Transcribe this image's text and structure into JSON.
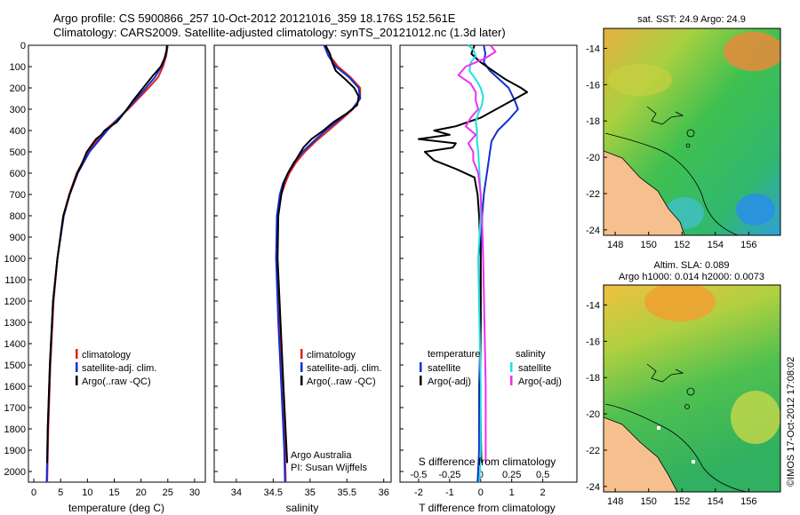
{
  "header": {
    "line1": "Argo profile: CS 5900866_257 10-Oct-2012 20121016_359 18.176S 152.561E",
    "line2": "Climatology: CARS2009. Satellite-adjusted climatology: synTS_20121012.nc (1.3d later)"
  },
  "colors": {
    "climatology": "#e02020",
    "satellite": "#1030d0",
    "argo": "#000000",
    "cyan": "#20e0e0",
    "magenta": "#ee30ee",
    "land": "#f5c08e",
    "border": "#000000"
  },
  "chart_data": [
    {
      "type": "line",
      "name": "temperature-profile",
      "xlabel": "temperature (deg C)",
      "ylabel": "",
      "xlim": [
        -1,
        32
      ],
      "ylim": [
        2050,
        0
      ],
      "xticks": [
        0,
        5,
        10,
        15,
        20,
        25,
        30
      ],
      "yticks": [
        0,
        100,
        200,
        300,
        400,
        500,
        600,
        700,
        800,
        900,
        1000,
        1100,
        1200,
        1300,
        1400,
        1500,
        1600,
        1700,
        1800,
        1900,
        2000
      ],
      "legend": [
        "climatology",
        "satellite-adj. clim.",
        "Argo(..raw -QC)"
      ],
      "series": [
        {
          "name": "climatology",
          "color": "climatology",
          "depth": [
            0,
            50,
            100,
            150,
            200,
            300,
            400,
            500,
            600,
            700,
            800,
            1000,
            1200,
            1500,
            1800,
            2050
          ],
          "values": [
            25,
            24.7,
            24.1,
            23.2,
            21.4,
            17.6,
            13.3,
            10.1,
            8.0,
            6.6,
            5.5,
            4.4,
            3.7,
            3.1,
            2.7,
            2.5
          ]
        },
        {
          "name": "satellite-adj. clim.",
          "color": "satellite",
          "depth": [
            0,
            50,
            100,
            150,
            200,
            300,
            400,
            500,
            600,
            700,
            800,
            1000,
            1200,
            1500,
            1800,
            2050
          ],
          "values": [
            24.9,
            24.6,
            23.8,
            22.6,
            20.9,
            17.4,
            13.7,
            10.4,
            8.2,
            6.7,
            5.6,
            4.4,
            3.6,
            3.0,
            2.6,
            2.4
          ]
        },
        {
          "name": "Argo(..raw -QC)",
          "color": "argo",
          "depth": [
            0,
            20,
            60,
            100,
            140,
            200,
            260,
            320,
            360,
            400,
            420,
            440,
            500,
            560,
            600,
            700,
            800,
            1000,
            1200,
            1500,
            1800,
            1960
          ],
          "values": [
            24.8,
            24.8,
            24.4,
            23.7,
            22.3,
            20.4,
            18.5,
            16.8,
            15.5,
            13.2,
            12.6,
            11.6,
            9.9,
            8.9,
            8.1,
            6.7,
            5.5,
            4.4,
            3.6,
            3.0,
            2.6,
            2.5
          ]
        }
      ]
    },
    {
      "type": "line",
      "name": "salinity-profile",
      "xlabel": "salinity",
      "xlim": [
        33.7,
        36.1
      ],
      "ylim": [
        2050,
        0
      ],
      "xticks": [
        34,
        34.5,
        35,
        35.5,
        36
      ],
      "legend": [
        "climatology",
        "satellite-adj. clim.",
        "Argo(..raw -QC)"
      ],
      "annotation": [
        "Argo Australia",
        "PI: Susan Wijffels"
      ],
      "series": [
        {
          "name": "climatology",
          "color": "climatology",
          "depth": [
            0,
            50,
            100,
            150,
            200,
            250,
            300,
            350,
            400,
            450,
            500,
            550,
            600,
            650,
            700,
            800,
            1000,
            1300,
            1600,
            1900,
            2050
          ],
          "values": [
            35.2,
            35.27,
            35.38,
            35.55,
            35.68,
            35.68,
            35.58,
            35.42,
            35.25,
            35.08,
            34.93,
            34.81,
            34.72,
            34.66,
            34.61,
            34.56,
            34.55,
            34.58,
            34.62,
            34.66,
            34.67
          ]
        },
        {
          "name": "satellite-adj. clim.",
          "color": "satellite",
          "depth": [
            0,
            50,
            100,
            150,
            200,
            250,
            300,
            350,
            400,
            450,
            500,
            550,
            600,
            650,
            700,
            800,
            1000,
            1300,
            1600,
            1900,
            2050
          ],
          "values": [
            35.19,
            35.25,
            35.35,
            35.53,
            35.66,
            35.68,
            35.57,
            35.39,
            35.21,
            35.05,
            34.9,
            34.78,
            34.7,
            34.63,
            34.59,
            34.55,
            34.54,
            34.57,
            34.61,
            34.65,
            34.66
          ]
        },
        {
          "name": "Argo(..raw -QC)",
          "color": "argo",
          "depth": [
            0,
            40,
            80,
            120,
            160,
            200,
            240,
            280,
            320,
            360,
            400,
            440,
            480,
            520,
            560,
            600,
            640,
            700,
            800,
            1000,
            1300,
            1600,
            1960
          ],
          "values": [
            35.21,
            35.27,
            35.3,
            35.35,
            35.48,
            35.6,
            35.66,
            35.64,
            35.5,
            35.32,
            35.18,
            35.02,
            34.91,
            34.84,
            34.77,
            34.7,
            34.65,
            34.61,
            34.57,
            34.56,
            34.6,
            34.64,
            34.69
          ]
        }
      ]
    },
    {
      "type": "line",
      "name": "difference-profile",
      "xlabel_top": "S difference from climatology",
      "xlabel": "T difference from climatology",
      "xlim": [
        -2.6,
        3.1
      ],
      "ylim": [
        2050,
        0
      ],
      "xticks": [
        -2,
        -1,
        0,
        1,
        2
      ],
      "xticks_top": [
        -0.5,
        -0.25,
        0,
        0.25,
        0.5
      ],
      "legend_left_title": "temperature",
      "legend_right_title": "salinity",
      "legend": [
        "satellite",
        "Argo(-adj)",
        "satellite",
        "Argo(-adj)"
      ],
      "series": [
        {
          "name": "T satellite",
          "color": "satellite",
          "depth": [
            0,
            40,
            80,
            120,
            160,
            200,
            260,
            300,
            350,
            400,
            450,
            500,
            550,
            600,
            650,
            700,
            800,
            1000,
            1300,
            1600,
            1900,
            2050
          ],
          "values": [
            0.1,
            0.15,
            0.1,
            0.3,
            0.6,
            0.9,
            1.1,
            1.2,
            0.9,
            0.55,
            0.35,
            0.3,
            0.25,
            0.2,
            0.15,
            0.1,
            0.05,
            0,
            0,
            -0.05,
            -0.05,
            -0.1
          ]
        },
        {
          "name": "T Argo(-adj)",
          "color": "argo",
          "depth": [
            0,
            40,
            80,
            120,
            160,
            200,
            220,
            260,
            300,
            340,
            380,
            400,
            420,
            440,
            460,
            480,
            500,
            540,
            580,
            620,
            660,
            700,
            800,
            1000,
            1300,
            1600,
            1960
          ],
          "values": [
            -0.2,
            -0.3,
            0.0,
            0.4,
            0.8,
            1.3,
            1.5,
            1.0,
            0.5,
            0.0,
            -0.8,
            -1.5,
            -1.0,
            -2.0,
            -0.8,
            -0.9,
            -1.8,
            -1.5,
            -0.8,
            -0.2,
            -0.15,
            -0.1,
            -0.05,
            0,
            0,
            -0.02,
            0.02
          ]
        },
        {
          "name": "S satellite",
          "color": "cyan",
          "depth": [
            0,
            20,
            50,
            80,
            120,
            160,
            200,
            240,
            280,
            320,
            360,
            400,
            450,
            500,
            600,
            700,
            800,
            1000,
            1300,
            1600,
            1900,
            2050
          ],
          "values": [
            -0.1,
            -0.06,
            -0.04,
            -0.08,
            -0.09,
            -0.04,
            0,
            0.02,
            0.01,
            -0.02,
            -0.04,
            -0.03,
            -0.03,
            -0.02,
            -0.01,
            0,
            0,
            -0.02,
            -0.01,
            0.0,
            0.0,
            -0.01
          ]
        },
        {
          "name": "S Argo(-adj)",
          "color": "magenta",
          "depth": [
            0,
            30,
            60,
            100,
            140,
            180,
            220,
            260,
            300,
            340,
            380,
            420,
            460,
            500,
            540,
            600,
            700,
            800,
            1000,
            1300,
            1600,
            1960
          ],
          "values": [
            0.08,
            0.12,
            0.04,
            -0.12,
            -0.18,
            -0.08,
            -0.04,
            -0.04,
            -0.02,
            -0.08,
            -0.12,
            -0.04,
            -0.1,
            -0.06,
            -0.06,
            -0.02,
            0.0,
            0.01,
            0.02,
            0.03,
            0.04,
            0.04
          ]
        }
      ]
    },
    {
      "type": "heatmap",
      "name": "sst-map",
      "title": "sat. SST: 24.9 Argo: 24.9",
      "xticks": [
        148,
        150,
        152,
        154,
        156
      ],
      "yticks": [
        -14,
        -16,
        -18,
        -20,
        -22,
        -24
      ],
      "xlim": [
        147.3,
        157.9
      ],
      "ylim": [
        -24.3,
        -12.9
      ],
      "argo_position": [
        152.561,
        -18.176
      ]
    },
    {
      "type": "heatmap",
      "name": "sla-map",
      "title": "Altim. SLA: 0.089",
      "subtitle": "Argo h1000: 0.014 h2000: 0.0073",
      "xticks": [
        148,
        150,
        152,
        154,
        156
      ],
      "yticks": [
        -14,
        -16,
        -18,
        -20,
        -22,
        -24
      ],
      "xlim": [
        147.3,
        157.9
      ],
      "ylim": [
        -24.3,
        -12.9
      ],
      "argo_position": [
        152.561,
        -18.176
      ],
      "side_label": "©IMOS 17-Oct-2012 17:08:02"
    }
  ]
}
